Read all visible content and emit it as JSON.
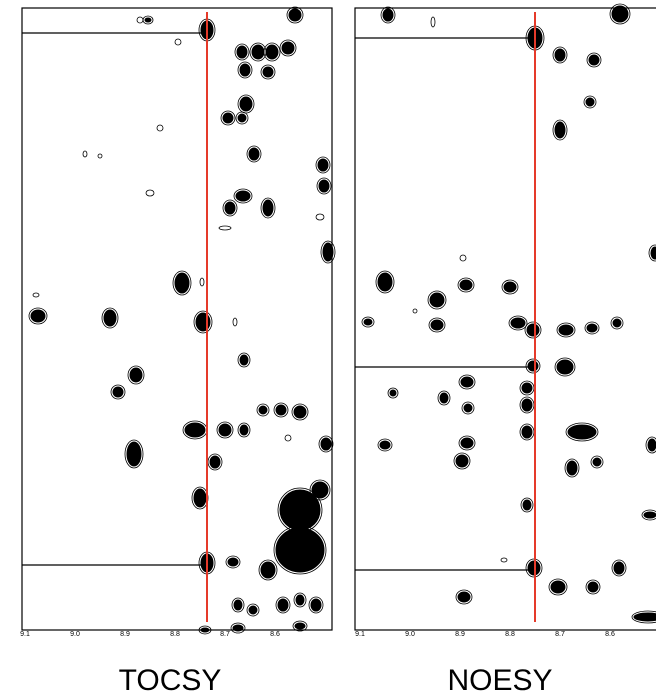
{
  "panels": [
    {
      "title": "TOCSY",
      "x_ticks": [
        "9.1",
        "9.0",
        "8.9",
        "8.8",
        "8.7",
        "8.6"
      ]
    },
    {
      "title": "NOESY",
      "x_ticks": [
        "9.1",
        "9.0",
        "8.9",
        "8.8",
        "8.7",
        "8.6"
      ]
    }
  ]
}
